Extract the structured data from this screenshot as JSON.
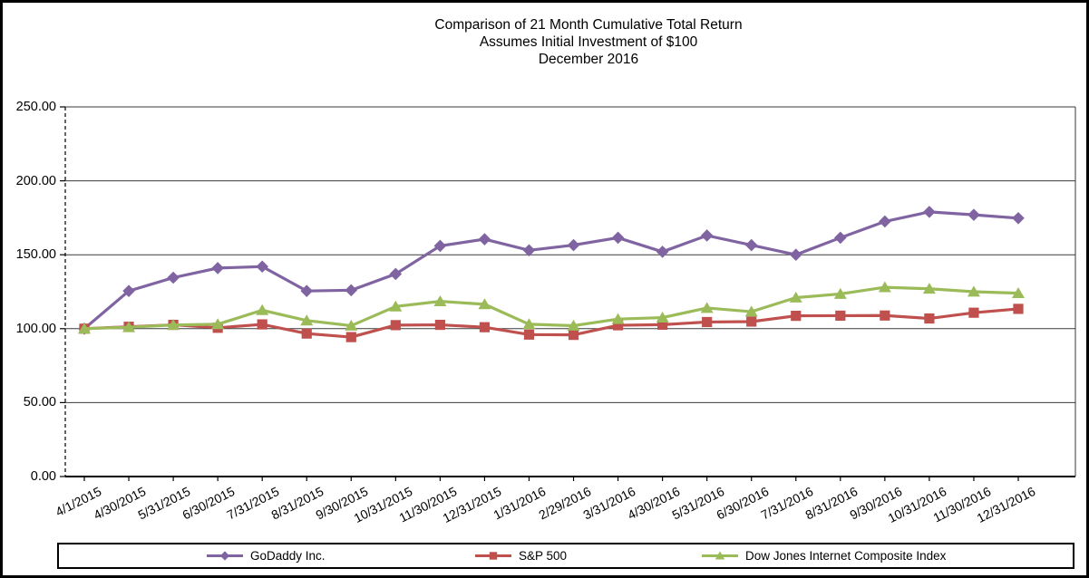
{
  "title": {
    "line1": "Comparison of 21 Month Cumulative Total Return",
    "line2": "Assumes Initial Investment of $100",
    "line3": "December 2016"
  },
  "chart_data": {
    "type": "line",
    "title": "Comparison of 21 Month Cumulative Total Return Assumes Initial Investment of $100 December 2016",
    "categories": [
      "4/1/2015",
      "4/30/2015",
      "5/31/2015",
      "6/30/2015",
      "7/31/2015",
      "8/31/2015",
      "9/30/2015",
      "10/31/2015",
      "11/30/2015",
      "12/31/2015",
      "1/31/2016",
      "2/29/2016",
      "3/31/2016",
      "4/30/2016",
      "5/31/2016",
      "6/30/2016",
      "7/31/2016",
      "8/31/2016",
      "9/30/2016",
      "10/31/2016",
      "11/30/2016",
      "12/31/2016"
    ],
    "series": [
      {
        "name": "GoDaddy Inc.",
        "marker": "diamond",
        "color": "#8064A2",
        "values": [
          100,
          125.5,
          134.5,
          141,
          142,
          125.5,
          126,
          137,
          156,
          160.5,
          153,
          156.5,
          161.5,
          152,
          163,
          156.5,
          150,
          161.5,
          172.5,
          179,
          177,
          174.75
        ]
      },
      {
        "name": "S&P 500",
        "marker": "square",
        "color": "#C0504D",
        "values": [
          100,
          101.3,
          102.6,
          100.6,
          102.9,
          96.7,
          94.3,
          102.4,
          102.6,
          101,
          96,
          95.8,
          102.3,
          102.7,
          104.5,
          104.8,
          108.7,
          108.8,
          108.9,
          106.9,
          110.8,
          113.4
        ]
      },
      {
        "name": "Dow Jones Internet Composite Index",
        "marker": "triangle",
        "color": "#9BBB59",
        "values": [
          100,
          101,
          102.5,
          103,
          112.5,
          105.5,
          102,
          115,
          118.5,
          116.5,
          103,
          102,
          106.5,
          107.5,
          114,
          111.5,
          121,
          123.5,
          128,
          127,
          125,
          124
        ]
      }
    ],
    "ylim": [
      0,
      250
    ],
    "y_tick_labels": [
      "250.00",
      "200.00",
      "150.00",
      "100.00",
      "50.00",
      "0.00"
    ],
    "grid": true,
    "legend_position": "bottom"
  }
}
